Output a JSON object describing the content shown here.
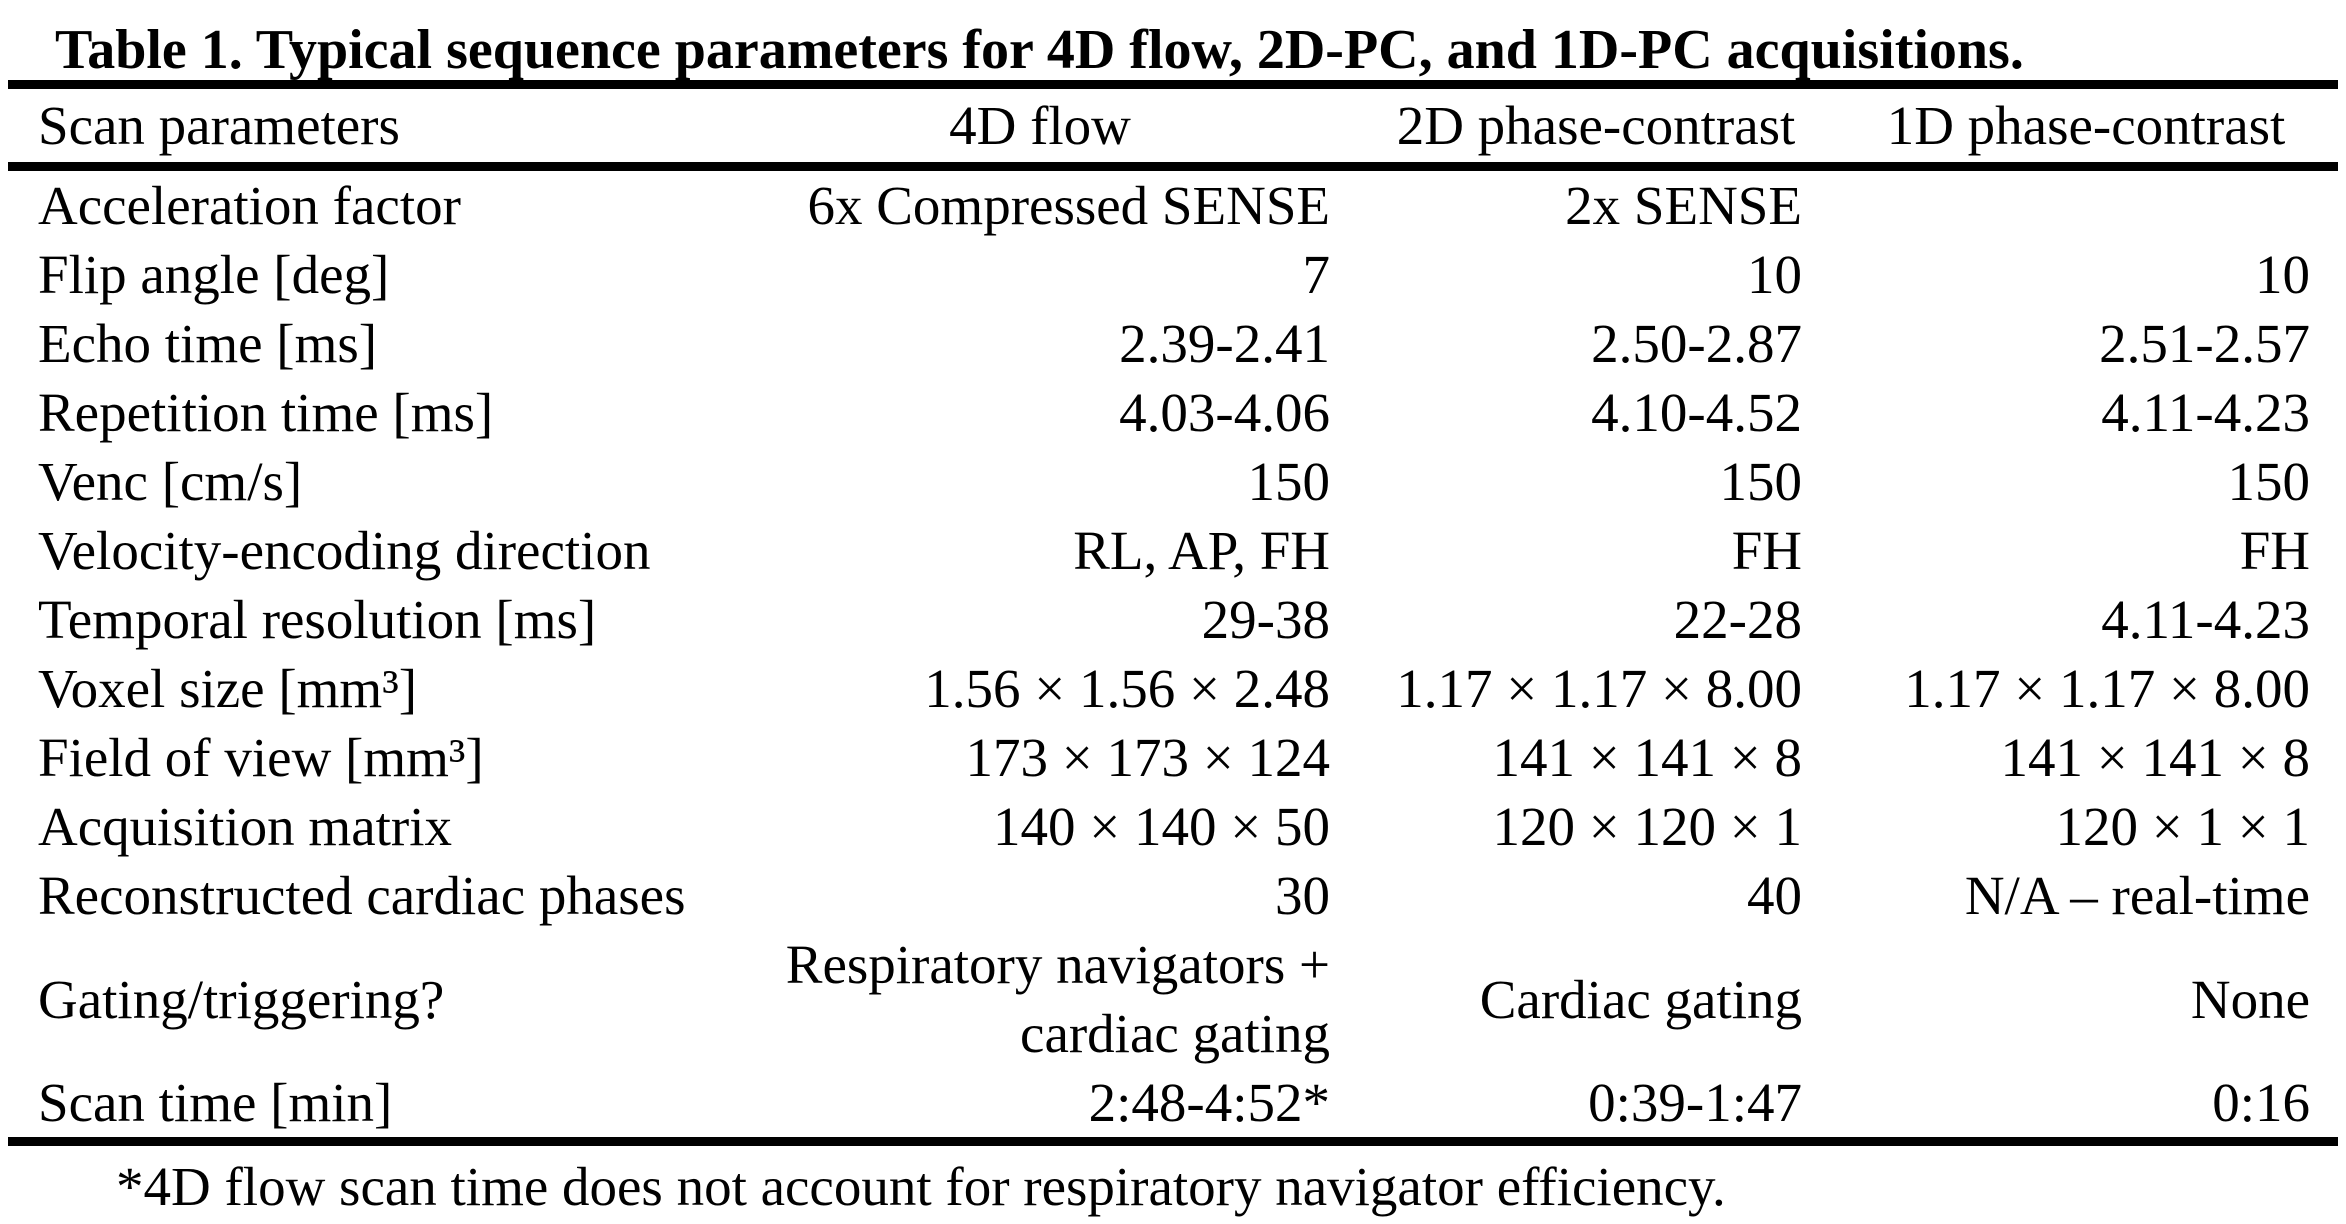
{
  "page": {
    "title": "Table 1. Typical sequence parameters for 4D flow, 2D-PC, and 1D-PC acquisitions.",
    "footnote": "*4D flow scan time does not account for respiratory navigator efficiency."
  },
  "colors": {
    "text": "#000000",
    "background": "#ffffff",
    "rule": "#000000"
  },
  "table": {
    "columns": [
      "Scan parameters",
      "4D flow",
      "2D phase-contrast",
      "1D phase-contrast"
    ],
    "rows": [
      [
        "Acceleration factor",
        "6x Compressed SENSE",
        "2x SENSE",
        ""
      ],
      [
        "Flip angle [deg]",
        "7",
        "10",
        "10"
      ],
      [
        "Echo time [ms]",
        "2.39-2.41",
        "2.50-2.87",
        "2.51-2.57"
      ],
      [
        "Repetition time [ms]",
        "4.03-4.06",
        "4.10-4.52",
        "4.11-4.23"
      ],
      [
        "Venc [cm/s]",
        "150",
        "150",
        "150"
      ],
      [
        "Velocity-encoding direction",
        "RL, AP, FH",
        "FH",
        "FH"
      ],
      [
        "Temporal resolution [ms]",
        "29-38",
        "22-28",
        "4.11-4.23"
      ],
      [
        "Voxel size [mm³]",
        "1.56 × 1.56 × 2.48",
        "1.17 × 1.17 × 8.00",
        "1.17 × 1.17 × 8.00"
      ],
      [
        "Field of view [mm³]",
        "173 × 173 × 124",
        "141 × 141 × 8",
        "141 × 141 × 8"
      ],
      [
        "Acquisition matrix",
        "140 × 140 × 50",
        "120 × 120 × 1",
        "120 × 1 × 1"
      ],
      [
        "Reconstructed cardiac phases",
        "30",
        "40",
        "N/A – real-time"
      ],
      [
        "Gating/triggering?",
        "Respiratory navigators + cardiac gating",
        "Cardiac gating",
        "None"
      ],
      [
        "Scan time [min]",
        "2:48-4:52*",
        "0:39-1:47",
        "0:16"
      ]
    ]
  }
}
